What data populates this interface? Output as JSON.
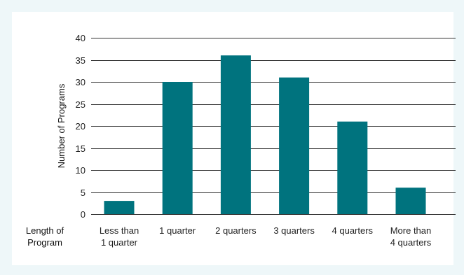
{
  "chart_data": {
    "type": "bar",
    "title": "",
    "xlabel": "Length of Program",
    "xlabel_lines": [
      "Length of",
      "Program"
    ],
    "ylabel": "Number of Programs",
    "ylim": [
      0,
      40
    ],
    "yticks": [
      0,
      5,
      10,
      15,
      20,
      25,
      30,
      35,
      40
    ],
    "grid": true,
    "categories": [
      "Less than 1 quarter",
      "1 quarter",
      "2 quarters",
      "3 quarters",
      "4 quarters",
      "More than 4 quarters"
    ],
    "category_lines": [
      [
        "Less than",
        "1 quarter"
      ],
      [
        "1 quarter"
      ],
      [
        "2 quarters"
      ],
      [
        "3 quarters"
      ],
      [
        "4 quarters"
      ],
      [
        "More than",
        "4 quarters"
      ]
    ],
    "values": [
      3,
      30,
      36,
      31,
      21,
      6
    ],
    "bar_color": "#00737e",
    "grid_color": "#333333"
  }
}
